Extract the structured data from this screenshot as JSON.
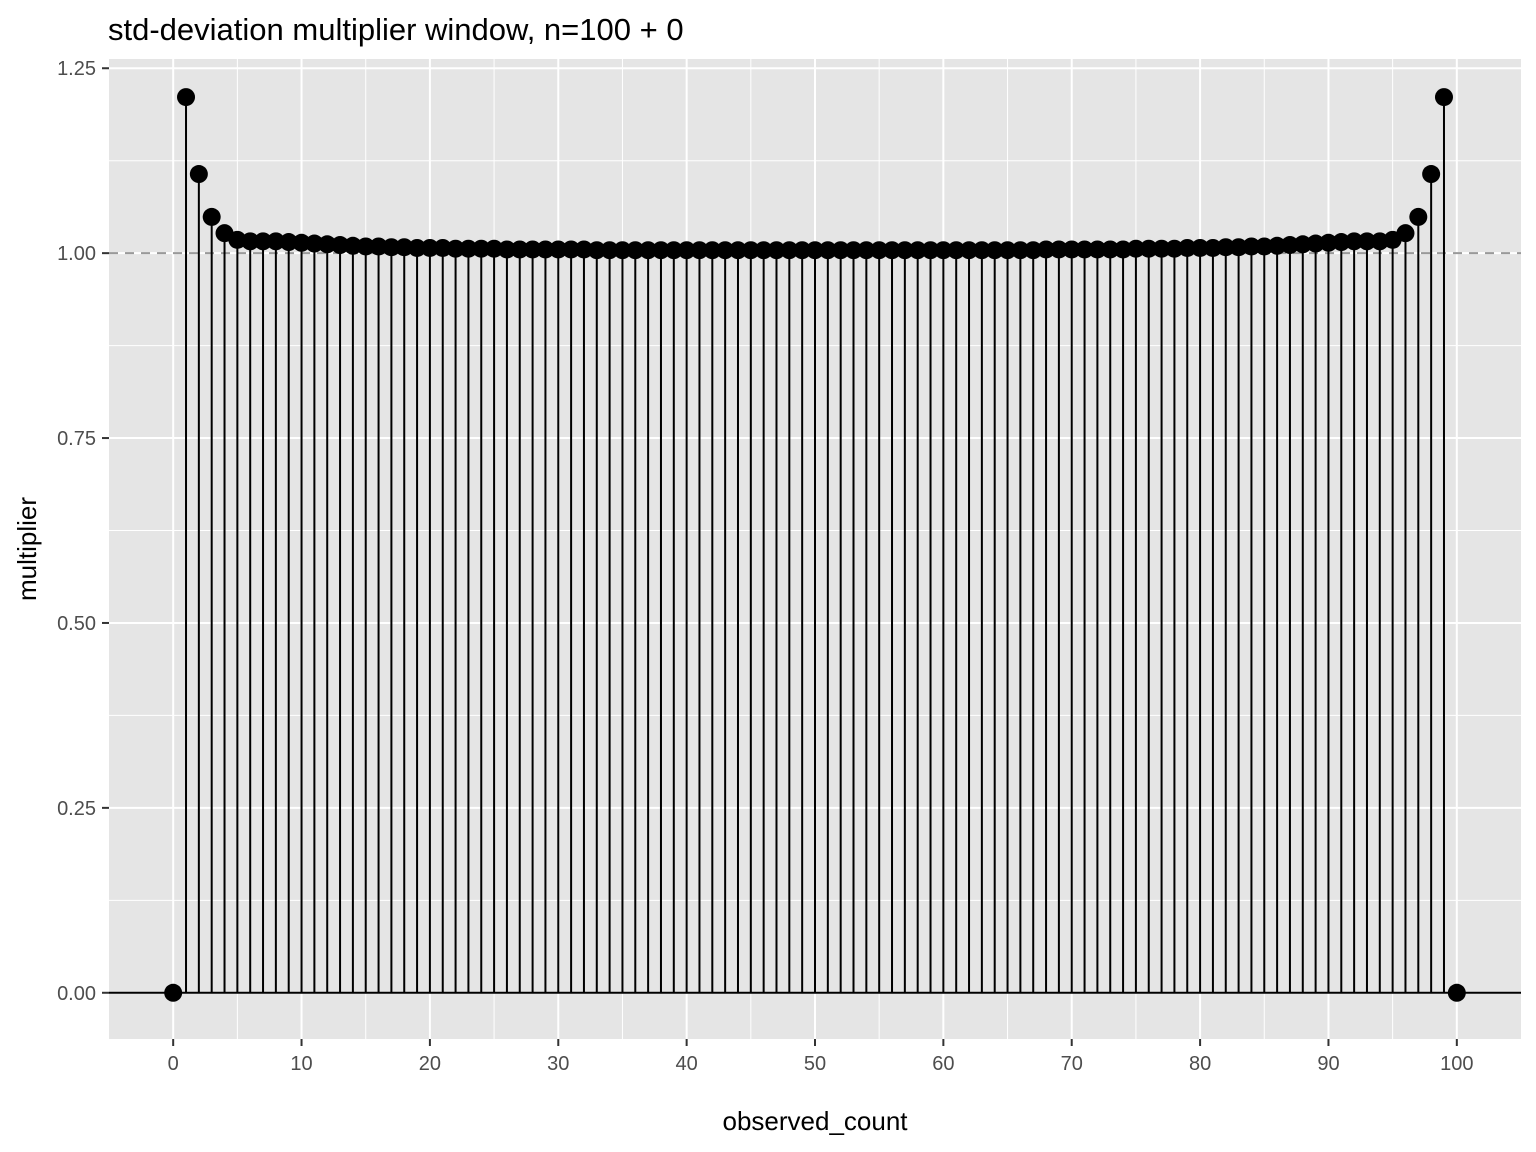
{
  "chart_data": {
    "type": "lollipop",
    "title": "std-deviation multiplier window, n=100 + 0",
    "xlabel": "observed_count",
    "ylabel": "multiplier",
    "xlim": [
      -5,
      105
    ],
    "ylim": [
      -0.0625,
      1.2625
    ],
    "x_ticks": [
      0,
      10,
      20,
      30,
      40,
      50,
      60,
      70,
      80,
      90,
      100
    ],
    "x_tick_labels": [
      "0",
      "10",
      "20",
      "30",
      "40",
      "50",
      "60",
      "70",
      "80",
      "90",
      "100"
    ],
    "y_ticks": [
      0,
      0.25,
      0.5,
      0.75,
      1.0,
      1.25
    ],
    "y_tick_labels": [
      "0.00",
      "0.25",
      "0.50",
      "0.75",
      "1.00",
      "1.25"
    ],
    "reference_line": {
      "y": 1.0,
      "style": "dashed",
      "color": "#999999"
    },
    "grid": true,
    "legend": "none",
    "x": [
      0,
      1,
      2,
      3,
      4,
      5,
      6,
      7,
      8,
      9,
      10,
      11,
      12,
      13,
      14,
      15,
      16,
      17,
      18,
      19,
      20,
      21,
      22,
      23,
      24,
      25,
      26,
      27,
      28,
      29,
      30,
      31,
      32,
      33,
      34,
      35,
      36,
      37,
      38,
      39,
      40,
      41,
      42,
      43,
      44,
      45,
      46,
      47,
      48,
      49,
      50,
      51,
      52,
      53,
      54,
      55,
      56,
      57,
      58,
      59,
      60,
      61,
      62,
      63,
      64,
      65,
      66,
      67,
      68,
      69,
      70,
      71,
      72,
      73,
      74,
      75,
      76,
      77,
      78,
      79,
      80,
      81,
      82,
      83,
      84,
      85,
      86,
      87,
      88,
      89,
      90,
      91,
      92,
      93,
      94,
      95,
      96,
      97,
      98,
      99,
      100
    ],
    "values": [
      0,
      1.211,
      1.107,
      1.049,
      1.027,
      1.018,
      1.016,
      1.016,
      1.016,
      1.015,
      1.014,
      1.013,
      1.012,
      1.011,
      1.01,
      1.009,
      1.009,
      1.008,
      1.008,
      1.007,
      1.007,
      1.007,
      1.006,
      1.006,
      1.006,
      1.006,
      1.005,
      1.005,
      1.005,
      1.005,
      1.005,
      1.005,
      1.005,
      1.004,
      1.004,
      1.004,
      1.004,
      1.004,
      1.004,
      1.004,
      1.004,
      1.004,
      1.004,
      1.004,
      1.004,
      1.004,
      1.004,
      1.004,
      1.004,
      1.004,
      1.004,
      1.004,
      1.004,
      1.004,
      1.004,
      1.004,
      1.004,
      1.004,
      1.004,
      1.004,
      1.004,
      1.004,
      1.004,
      1.004,
      1.004,
      1.004,
      1.004,
      1.004,
      1.005,
      1.005,
      1.005,
      1.005,
      1.005,
      1.005,
      1.005,
      1.006,
      1.006,
      1.006,
      1.006,
      1.007,
      1.007,
      1.007,
      1.008,
      1.008,
      1.009,
      1.009,
      1.01,
      1.011,
      1.012,
      1.013,
      1.014,
      1.015,
      1.016,
      1.016,
      1.016,
      1.018,
      1.027,
      1.049,
      1.107,
      1.211,
      0
    ],
    "colors": {
      "panel": "#e5e5e5",
      "grid": "#ffffff",
      "marks": "#000000",
      "tick_text": "#4d4d4d"
    }
  }
}
